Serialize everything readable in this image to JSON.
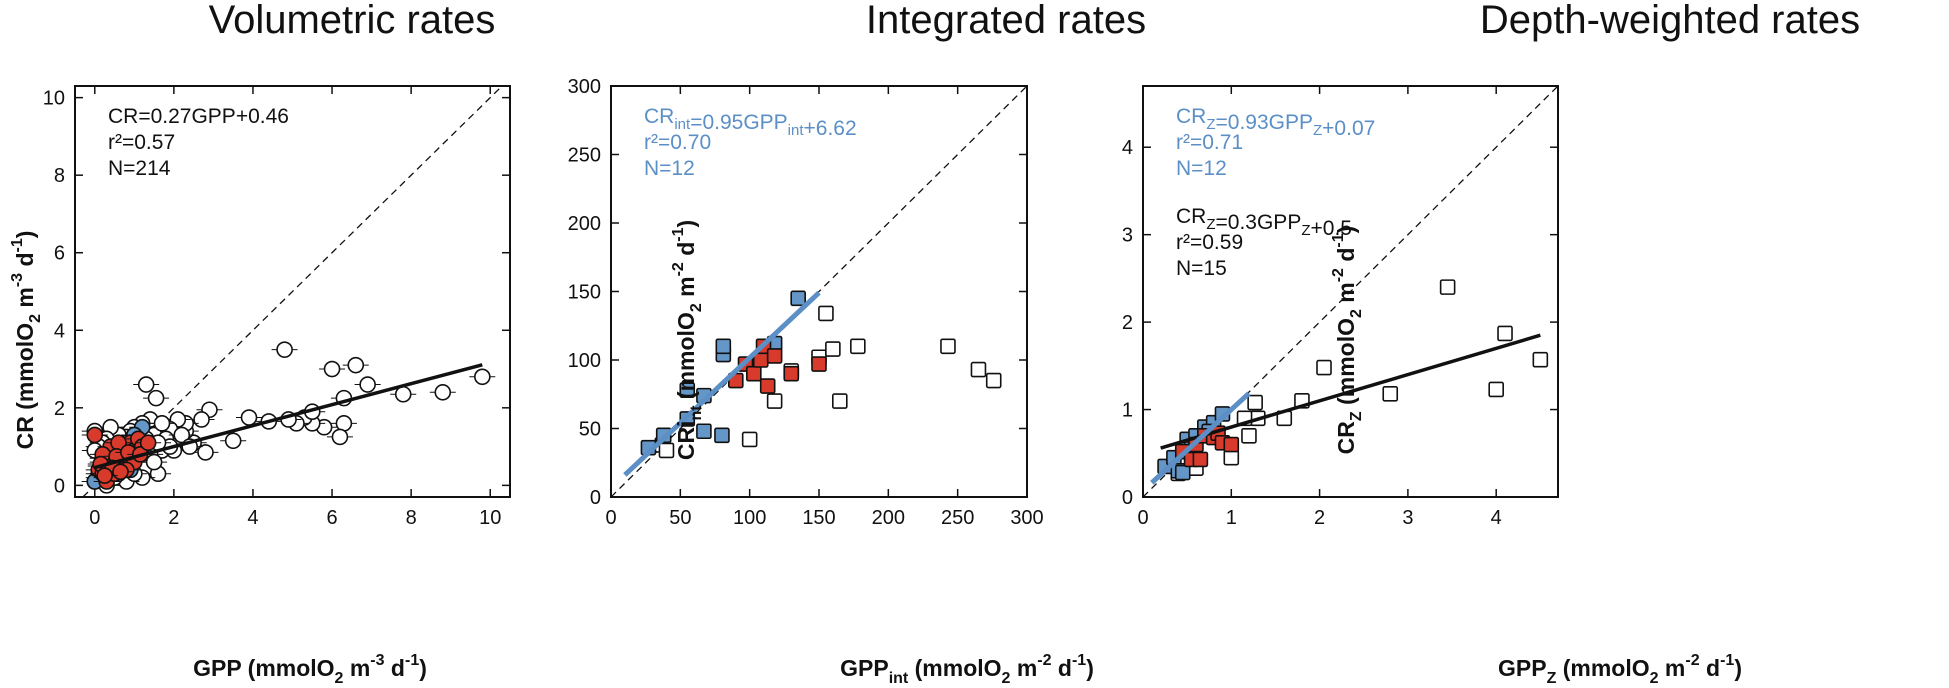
{
  "colors": {
    "blue": "#6497c8",
    "red": "#d83b2b",
    "fit_blue": "#5b8fc6",
    "black": "#111111"
  },
  "chart_data": [
    {
      "type": "scatter",
      "title": "Volumetric rates",
      "xlabel": {
        "pre": "GPP (mmolO",
        "sub1": "2",
        "mid1": " m",
        "sup1": "-3",
        "mid2": " d",
        "sup2": "-1",
        "post": ")"
      },
      "ylabel": {
        "pre": "CR (mmolO",
        "sub1": "2",
        "mid1": " m",
        "sup1": "-3",
        "mid2": " d",
        "sup2": "-1",
        "post": ")"
      },
      "xlim": [
        -0.5,
        10.5
      ],
      "ylim": [
        -0.3,
        10.3
      ],
      "xticks": [
        0,
        2,
        4,
        6,
        8,
        10
      ],
      "yticks": [
        0,
        2,
        4,
        6,
        8,
        10
      ],
      "marker": "circle",
      "grid": false,
      "fits": [
        {
          "color": "black",
          "x0": 0,
          "y0": 0.46,
          "x1": 9.8,
          "y1": 3.11
        }
      ],
      "annotations": [
        {
          "color": "black",
          "lines": [
            "CR=0.27GPP+0.46",
            "r²=0.57",
            "N=214"
          ]
        }
      ],
      "series": [
        {
          "fill": "white",
          "points": [
            [
              4.8,
              3.5
            ],
            [
              6.6,
              3.1
            ],
            [
              6,
              3
            ],
            [
              6.9,
              2.6
            ],
            [
              7.8,
              2.35
            ],
            [
              8.8,
              2.4
            ],
            [
              9.8,
              2.8
            ],
            [
              6.3,
              2.25
            ],
            [
              6.3,
              1.6
            ],
            [
              6.2,
              1.25
            ],
            [
              5.8,
              1.5
            ],
            [
              5.5,
              1.6
            ],
            [
              5.3,
              1.75
            ],
            [
              5.1,
              1.6
            ],
            [
              4.9,
              1.7
            ],
            [
              5.5,
              1.9
            ],
            [
              4.4,
              1.65
            ],
            [
              3.9,
              1.75
            ],
            [
              3.5,
              1.15
            ],
            [
              2.9,
              1.95
            ],
            [
              2.7,
              1.7
            ],
            [
              2.8,
              0.85
            ],
            [
              2.5,
              1.1
            ],
            [
              2.3,
              1.4
            ],
            [
              2.1,
              1.5
            ],
            [
              2.3,
              1.6
            ],
            [
              2.1,
              1.7
            ],
            [
              1.9,
              1.45
            ],
            [
              1.7,
              0.9
            ],
            [
              1.5,
              1.3
            ],
            [
              1.3,
              2.6
            ],
            [
              1.55,
              2.25
            ],
            [
              1.4,
              1.7
            ],
            [
              1.2,
              1.6
            ],
            [
              1,
              1.5
            ],
            [
              0.9,
              1.4
            ],
            [
              0.8,
              1.25
            ],
            [
              0.6,
              1.3
            ],
            [
              0.4,
              1.5
            ],
            [
              0.3,
              1.2
            ],
            [
              0.2,
              1.1
            ],
            [
              0.1,
              1
            ],
            [
              0,
              0.9
            ],
            [
              0,
              1.4
            ],
            [
              0.5,
              0.9
            ],
            [
              1.8,
              1.2
            ],
            [
              2,
              0.9
            ],
            [
              1.6,
              0.3
            ],
            [
              1.2,
              0.2
            ],
            [
              0.8,
              0.1
            ],
            [
              0.5,
              0.2
            ],
            [
              0.3,
              0
            ],
            [
              0.1,
              0.2
            ],
            [
              0,
              0.1
            ],
            [
              0.2,
              0.7
            ],
            [
              0.4,
              0.6
            ],
            [
              0.6,
              0.7
            ],
            [
              1.1,
              1.1
            ],
            [
              1.3,
              1.2
            ],
            [
              0.7,
              1
            ],
            [
              1.7,
              1.6
            ],
            [
              2.2,
              1.3
            ],
            [
              1.9,
              1
            ],
            [
              1.4,
              0.8
            ],
            [
              1.6,
              1.1
            ],
            [
              2.4,
              1
            ],
            [
              0.9,
              0.6
            ],
            [
              0.3,
              0.4
            ],
            [
              0.6,
              0.3
            ],
            [
              1,
              0.3
            ],
            [
              1.5,
              0.6
            ],
            [
              0.15,
              0.5
            ]
          ]
        },
        {
          "fill": "blue",
          "points": [
            [
              0.5,
              1
            ],
            [
              1.2,
              1.5
            ],
            [
              1,
              1.3
            ],
            [
              0.8,
              1.1
            ],
            [
              0.3,
              0.8
            ],
            [
              0.2,
              0.6
            ],
            [
              0.4,
              0.4
            ],
            [
              0.1,
              0.3
            ],
            [
              0,
              0.1
            ],
            [
              0.6,
              0.5
            ],
            [
              0.7,
              0.8
            ],
            [
              1.1,
              0.9
            ],
            [
              0.3,
              0.2
            ],
            [
              0.9,
              0.4
            ]
          ]
        },
        {
          "fill": "red",
          "points": [
            [
              0,
              1.3
            ],
            [
              0.1,
              0.4
            ],
            [
              0.2,
              0.3
            ],
            [
              0.3,
              0.5
            ],
            [
              0.4,
              0.7
            ],
            [
              0.5,
              0.6
            ],
            [
              0.6,
              0.9
            ],
            [
              0.7,
              0.8
            ],
            [
              0.8,
              1
            ],
            [
              0.9,
              1.1
            ],
            [
              1,
              0.9
            ],
            [
              1.1,
              1.2
            ],
            [
              1.2,
              1
            ],
            [
              0.3,
              0.1
            ],
            [
              0.5,
              0.3
            ],
            [
              0.7,
              0.5
            ],
            [
              0.9,
              0.7
            ],
            [
              0.4,
              1
            ],
            [
              0.6,
              1.1
            ],
            [
              0.2,
              0.8
            ],
            [
              1,
              0.6
            ],
            [
              0.8,
              0.4
            ],
            [
              0.15,
              0.55
            ],
            [
              0.55,
              0.75
            ],
            [
              0.85,
              0.85
            ],
            [
              1.15,
              0.8
            ],
            [
              1.35,
              1.1
            ],
            [
              0.45,
              0.45
            ],
            [
              0.65,
              0.35
            ],
            [
              0.25,
              0.25
            ]
          ]
        }
      ]
    },
    {
      "type": "scatter",
      "title": "Integrated rates",
      "xlabel": {
        "pre": "GPP",
        "sub1": "int",
        "mid1": " (mmolO",
        "sup1": "",
        "mid2": "",
        "sub2": "2",
        "mid3": " m",
        "sup2": "-2",
        "mid4": " d",
        "sup3": "-1",
        "post": ")"
      },
      "ylabel": {
        "pre": "CRi",
        "sub1": "nt",
        "mid1": " (mmolO",
        "sub2": "2",
        "mid2": " m",
        "sup1": "-2",
        "mid3": " d",
        "sup2": "-1",
        "post": ")"
      },
      "xlim": [
        0,
        300
      ],
      "ylim": [
        0,
        300
      ],
      "xticks": [
        0,
        50,
        100,
        150,
        200,
        250,
        300
      ],
      "yticks": [
        0,
        50,
        100,
        150,
        200,
        250,
        300
      ],
      "marker": "square",
      "grid": false,
      "fits": [
        {
          "color": "fit_blue",
          "x0": 10,
          "y0": 16.1,
          "x1": 150,
          "y1": 149.1
        }
      ],
      "annotations": [
        {
          "color": "fit_blue",
          "lines": [
            "CR_int=0.95GPP_int+6.62",
            "r²=0.70",
            "N=12"
          ]
        }
      ],
      "series": [
        {
          "fill": "white",
          "points": [
            [
              37,
              38
            ],
            [
              40,
              34
            ],
            [
              100,
              42
            ],
            [
              118,
              70
            ],
            [
              130,
              91
            ],
            [
              150,
              102
            ],
            [
              155,
              134
            ],
            [
              160,
              108
            ],
            [
              165,
              70
            ],
            [
              178,
              110
            ],
            [
              243,
              110
            ],
            [
              265,
              93
            ],
            [
              276,
              85
            ],
            [
              130,
              92
            ]
          ]
        },
        {
          "fill": "blue",
          "points": [
            [
              27,
              36
            ],
            [
              38,
              45
            ],
            [
              55,
              57
            ],
            [
              67,
              48
            ],
            [
              67,
              74
            ],
            [
              80,
              45
            ],
            [
              81,
              104
            ],
            [
              81,
              110
            ],
            [
              112,
              110
            ],
            [
              118,
              112
            ],
            [
              135,
              145
            ],
            [
              55,
              78
            ]
          ]
        },
        {
          "fill": "red",
          "points": [
            [
              90,
              85
            ],
            [
              97,
              97
            ],
            [
              103,
              90
            ],
            [
              108,
              100
            ],
            [
              110,
              110
            ],
            [
              113,
              81
            ],
            [
              118,
              103
            ],
            [
              130,
              90
            ],
            [
              150,
              97
            ]
          ]
        }
      ]
    },
    {
      "type": "scatter",
      "title": "Depth-weighted rates",
      "xlabel": {
        "pre": "GPP",
        "sub1": "Z",
        "mid1": " (mmolO",
        "sub2": "2",
        "mid2": " m",
        "sup1": "-2",
        "mid3": " d",
        "sup2": "-1",
        "post": ")"
      },
      "ylabel": {
        "pre": "CR",
        "sub1": "Z",
        "mid1": " (mmolO",
        "sub2": "2",
        "mid2": " m",
        "sup1": "-2",
        "mid3": " d",
        "sup2": "-1",
        "post": ")"
      },
      "xlim": [
        0,
        4.7
      ],
      "ylim": [
        0,
        4.7
      ],
      "xticks": [
        0,
        1,
        2,
        3,
        4
      ],
      "yticks": [
        0,
        1,
        2,
        3,
        4
      ],
      "marker": "square",
      "grid": false,
      "fits": [
        {
          "color": "black",
          "x0": 0.2,
          "y0": 0.56,
          "x1": 4.5,
          "y1": 1.85
        },
        {
          "color": "fit_blue",
          "x0": 0.1,
          "y0": 0.163,
          "x1": 1.2,
          "y1": 1.186
        }
      ],
      "annotations": [
        {
          "color": "fit_blue",
          "lines": [
            "CR_Z=0.93GPP_Z+0.07",
            "r²=0.71",
            "N=12"
          ]
        },
        {
          "color": "black",
          "lines": [
            "CR_Z=0.3GPP_Z+0.5",
            "r²=0.59",
            "N=15"
          ]
        }
      ],
      "series": [
        {
          "fill": "white",
          "points": [
            [
              0.4,
              0.27
            ],
            [
              1,
              0.45
            ],
            [
              1.2,
              0.7
            ],
            [
              1.3,
              0.9
            ],
            [
              1.27,
              1.08
            ],
            [
              1.6,
              0.9
            ],
            [
              1.8,
              1.1
            ],
            [
              2.05,
              1.48
            ],
            [
              2.8,
              1.18
            ],
            [
              3.45,
              2.4
            ],
            [
              4,
              1.23
            ],
            [
              4.1,
              1.87
            ],
            [
              4.5,
              1.57
            ],
            [
              0.6,
              0.33
            ],
            [
              1.15,
              0.9
            ]
          ]
        },
        {
          "fill": "blue",
          "points": [
            [
              0.25,
              0.35
            ],
            [
              0.35,
              0.45
            ],
            [
              0.4,
              0.3
            ],
            [
              0.48,
              0.52
            ],
            [
              0.5,
              0.66
            ],
            [
              0.6,
              0.7
            ],
            [
              0.7,
              0.8
            ],
            [
              0.8,
              0.85
            ],
            [
              0.9,
              0.95
            ],
            [
              0.45,
              0.28
            ],
            [
              0.55,
              0.55
            ],
            [
              0.75,
              0.75
            ]
          ]
        },
        {
          "fill": "red",
          "points": [
            [
              0.45,
              0.52
            ],
            [
              0.55,
              0.43
            ],
            [
              0.6,
              0.6
            ],
            [
              0.65,
              0.43
            ],
            [
              0.7,
              0.7
            ],
            [
              0.8,
              0.68
            ],
            [
              0.85,
              0.73
            ],
            [
              0.9,
              0.62
            ],
            [
              1,
              0.6
            ]
          ]
        }
      ]
    }
  ]
}
